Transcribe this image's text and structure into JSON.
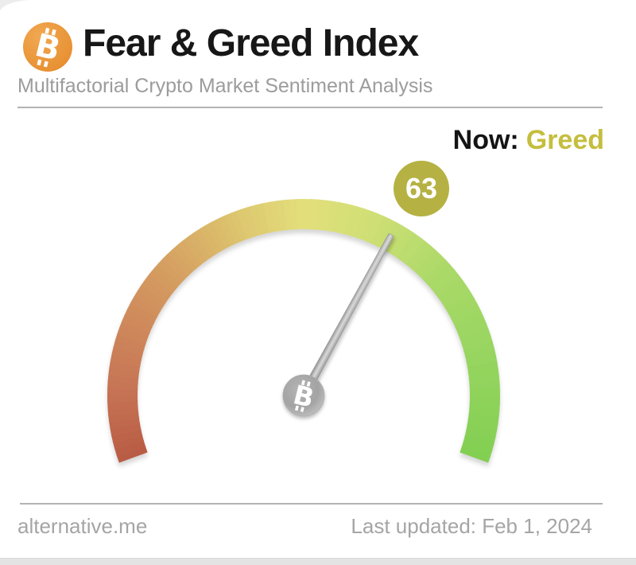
{
  "header": {
    "logo_symbol": "B",
    "logo_color": "#e9943a",
    "title": "Fear & Greed Index",
    "subtitle": "Multifactorial Crypto Market Sentiment Analysis"
  },
  "status": {
    "now_label": "Now:",
    "classification": "Greed",
    "classification_color": "#c4be3e",
    "value_badge": {
      "value": "63",
      "background": "#b5b243",
      "text_color": "#ffffff"
    }
  },
  "chart_data": {
    "type": "gauge",
    "title": "Fear & Greed Index",
    "subtitle": "Multifactorial Crypto Market Sentiment Analysis",
    "value": 63,
    "min": 0,
    "max": 100,
    "classification": "Greed",
    "start_angle_deg": 200,
    "end_angle_deg": -20,
    "color_scale": [
      {
        "pos": 0.0,
        "color": "#b85b44"
      },
      {
        "pos": 0.1,
        "color": "#c67455"
      },
      {
        "pos": 0.2,
        "color": "#cf8a5b"
      },
      {
        "pos": 0.3,
        "color": "#d6a262"
      },
      {
        "pos": 0.4,
        "color": "#ddc46e"
      },
      {
        "pos": 0.5,
        "color": "#e3df7b"
      },
      {
        "pos": 0.6,
        "color": "#cfdf75"
      },
      {
        "pos": 0.72,
        "color": "#abd968"
      },
      {
        "pos": 0.85,
        "color": "#97d560"
      },
      {
        "pos": 1.0,
        "color": "#82cf52"
      }
    ],
    "needle_gradient": [
      "#8f8f8f",
      "#dadada",
      "#878787"
    ],
    "pivot_symbol": "B"
  },
  "footer": {
    "source": "alternative.me",
    "last_updated": "Last updated: Feb 1, 2024"
  }
}
